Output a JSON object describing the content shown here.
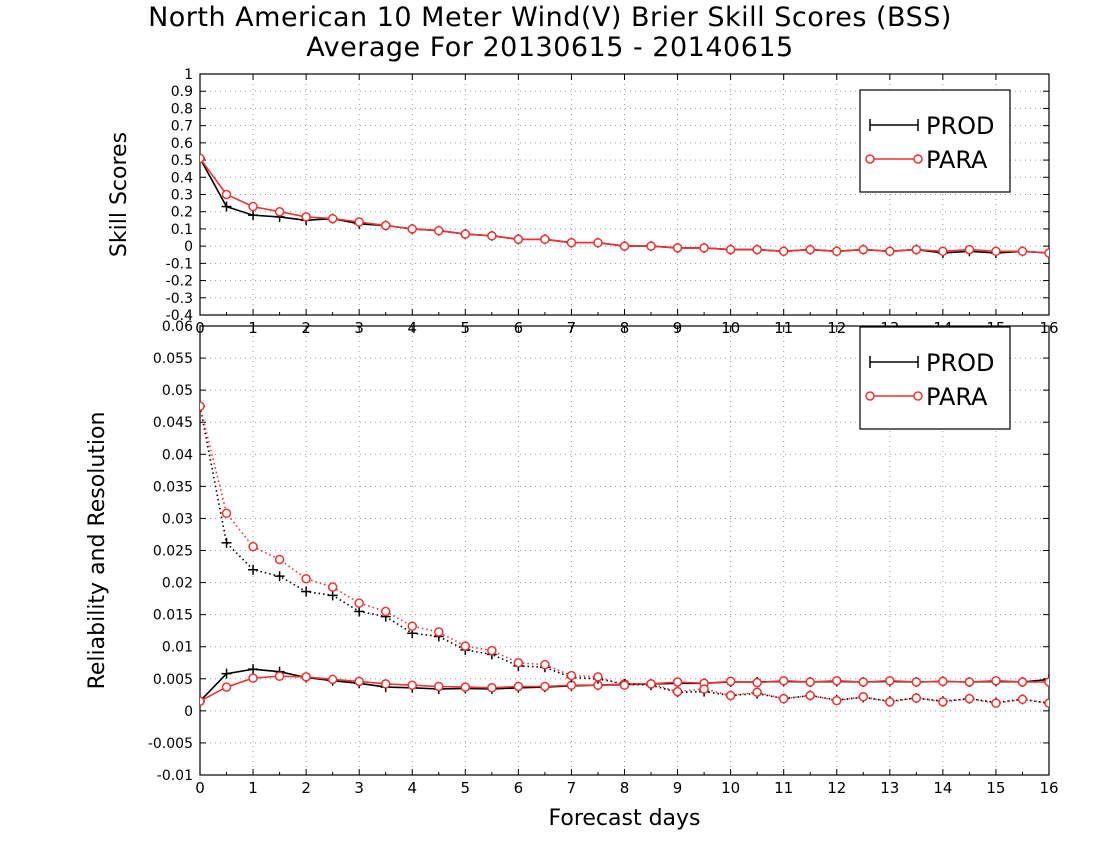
{
  "title": "North American 10 Meter Wind(V) Brier Skill Scores (BSS)",
  "subtitle": "Average For 20130615 - 20140615",
  "chart_data": [
    {
      "type": "line",
      "ylabel": "Skill Scores",
      "xlim": [
        0,
        16
      ],
      "ylim": [
        -0.4,
        1
      ],
      "xticks": [
        "0",
        "1",
        "2",
        "3",
        "4",
        "5",
        "6",
        "7",
        "8",
        "9",
        "10",
        "11",
        "12",
        "13",
        "14",
        "15",
        "16"
      ],
      "yticks": [
        "-0.4",
        "-0.3",
        "-0.2",
        "-0.1",
        "0",
        "0.1",
        "0.2",
        "0.3",
        "0.4",
        "0.5",
        "0.6",
        "0.7",
        "0.8",
        "0.9",
        "1"
      ],
      "grid": true,
      "legend_position": "top-right",
      "x": [
        0,
        0.5,
        1,
        1.5,
        2,
        2.5,
        3,
        3.5,
        4,
        4.5,
        5,
        5.5,
        6,
        6.5,
        7,
        7.5,
        8,
        8.5,
        9,
        9.5,
        10,
        10.5,
        11,
        11.5,
        12,
        12.5,
        13,
        13.5,
        14,
        14.5,
        15,
        15.5,
        16
      ],
      "series": [
        {
          "name": "PROD",
          "color": "#000000",
          "marker": "plus",
          "style": "solid",
          "values": [
            0.51,
            0.23,
            0.18,
            0.17,
            0.15,
            0.16,
            0.13,
            0.12,
            0.1,
            0.09,
            0.07,
            0.06,
            0.04,
            0.04,
            0.02,
            0.02,
            0.0,
            0.0,
            -0.01,
            -0.01,
            -0.02,
            -0.02,
            -0.03,
            -0.02,
            -0.03,
            -0.02,
            -0.03,
            -0.02,
            -0.04,
            -0.03,
            -0.04,
            -0.03,
            -0.04
          ]
        },
        {
          "name": "PARA",
          "color": "#ee3333",
          "marker": "circle",
          "style": "solid",
          "values": [
            0.51,
            0.3,
            0.23,
            0.2,
            0.17,
            0.16,
            0.14,
            0.12,
            0.1,
            0.09,
            0.07,
            0.06,
            0.04,
            0.04,
            0.02,
            0.02,
            0.0,
            0.0,
            -0.01,
            -0.01,
            -0.02,
            -0.02,
            -0.03,
            -0.02,
            -0.03,
            -0.02,
            -0.03,
            -0.02,
            -0.03,
            -0.02,
            -0.03,
            -0.03,
            -0.04
          ]
        }
      ]
    },
    {
      "type": "line",
      "ylabel": "Reliability and Resolution",
      "xlabel": "Forecast days",
      "xlim": [
        0,
        16
      ],
      "ylim": [
        -0.01,
        0.06
      ],
      "xticks": [
        "0",
        "1",
        "2",
        "3",
        "4",
        "5",
        "6",
        "7",
        "8",
        "9",
        "10",
        "11",
        "12",
        "13",
        "14",
        "15",
        "16"
      ],
      "yticks": [
        "-0.01",
        "-0.005",
        "0",
        "0.005",
        "0.01",
        "0.015",
        "0.02",
        "0.025",
        "0.03",
        "0.035",
        "0.04",
        "0.045",
        "0.05",
        "0.055",
        "0.06"
      ],
      "grid": true,
      "legend_position": "top-right",
      "x": [
        0,
        0.5,
        1,
        1.5,
        2,
        2.5,
        3,
        3.5,
        4,
        4.5,
        5,
        5.5,
        6,
        6.5,
        7,
        7.5,
        8,
        8.5,
        9,
        9.5,
        10,
        10.5,
        11,
        11.5,
        12,
        12.5,
        13,
        13.5,
        14,
        14.5,
        15,
        15.5,
        16
      ],
      "series": [
        {
          "name": "PROD",
          "color": "#000000",
          "marker": "plus",
          "style": "solid",
          "values": [
            0.0015,
            0.0058,
            0.0065,
            0.0061,
            0.0052,
            0.0047,
            0.0043,
            0.0037,
            0.0036,
            0.0034,
            0.0035,
            0.0034,
            0.0036,
            0.0037,
            0.0039,
            0.004,
            0.0041,
            0.0042,
            0.0043,
            0.0043,
            0.0045,
            0.0045,
            0.0046,
            0.0045,
            0.0046,
            0.0045,
            0.0046,
            0.0045,
            0.0046,
            0.0045,
            0.0046,
            0.0045,
            0.0049
          ]
        },
        {
          "name": "PARA",
          "color": "#ee3333",
          "marker": "circle",
          "style": "solid",
          "values": [
            0.0015,
            0.0037,
            0.0051,
            0.0054,
            0.0053,
            0.0049,
            0.0046,
            0.0042,
            0.004,
            0.0038,
            0.0037,
            0.0036,
            0.0038,
            0.0038,
            0.004,
            0.004,
            0.0042,
            0.0042,
            0.0045,
            0.0043,
            0.0046,
            0.0044,
            0.0047,
            0.0045,
            0.0047,
            0.0045,
            0.0047,
            0.0045,
            0.0046,
            0.0045,
            0.0047,
            0.0045,
            0.0045
          ]
        },
        {
          "name": "PROD",
          "color": "#000000",
          "marker": "plus",
          "style": "dotted",
          "values": [
            0.0475,
            0.0262,
            0.022,
            0.021,
            0.0186,
            0.018,
            0.0155,
            0.0147,
            0.0121,
            0.0116,
            0.0095,
            0.0088,
            0.007,
            0.0068,
            0.0052,
            0.005,
            0.0042,
            0.004,
            0.0029,
            0.003,
            0.0024,
            0.0027,
            0.0019,
            0.0024,
            0.0017,
            0.0021,
            0.0015,
            0.002,
            0.0015,
            0.0019,
            0.0013,
            0.0018,
            0.0012
          ]
        },
        {
          "name": "PARA",
          "color": "#ee3333",
          "marker": "circle",
          "style": "dotted",
          "values": [
            0.0475,
            0.0308,
            0.0256,
            0.0236,
            0.0206,
            0.0193,
            0.0168,
            0.0155,
            0.0132,
            0.0123,
            0.0101,
            0.0094,
            0.0075,
            0.0072,
            0.0055,
            0.0053,
            0.004,
            0.0042,
            0.003,
            0.0034,
            0.0024,
            0.0029,
            0.0019,
            0.0024,
            0.0016,
            0.0022,
            0.0014,
            0.002,
            0.0014,
            0.0019,
            0.0012,
            0.0018,
            0.0012
          ]
        }
      ]
    }
  ]
}
